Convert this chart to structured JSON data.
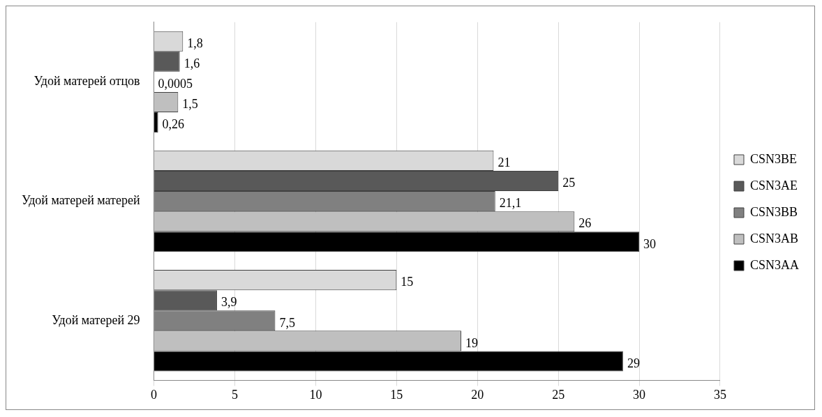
{
  "chart_data": {
    "type": "bar",
    "orientation": "horizontal",
    "categories": [
      "Удой матерей отцов",
      "Удой матерей матерей",
      "Удой матерей 29"
    ],
    "series": [
      {
        "name": "CSN3BE",
        "color": "#d9d9d9",
        "values": [
          1.8,
          21,
          15
        ],
        "value_labels": [
          "1,8",
          "21",
          "15"
        ]
      },
      {
        "name": "CSN3AE",
        "color": "#595959",
        "values": [
          1.6,
          25,
          3.9
        ],
        "value_labels": [
          "1,6",
          "25",
          "3,9"
        ]
      },
      {
        "name": "CSN3BB",
        "color": "#808080",
        "values": [
          0.0005,
          21.1,
          7.5
        ],
        "value_labels": [
          "0,0005",
          "21,1",
          "7,5"
        ]
      },
      {
        "name": "CSN3AB",
        "color": "#bfbfbf",
        "values": [
          1.5,
          26,
          19
        ],
        "value_labels": [
          "1,5",
          "26",
          "19"
        ]
      },
      {
        "name": "CSN3AA",
        "color": "#000000",
        "values": [
          0.26,
          30,
          29
        ],
        "value_labels": [
          "0,26",
          "30",
          "29"
        ]
      }
    ],
    "xlim": [
      0,
      35
    ],
    "xticks": [
      0,
      5,
      10,
      15,
      20,
      25,
      30,
      35
    ],
    "grid": "x",
    "legend": "right"
  }
}
